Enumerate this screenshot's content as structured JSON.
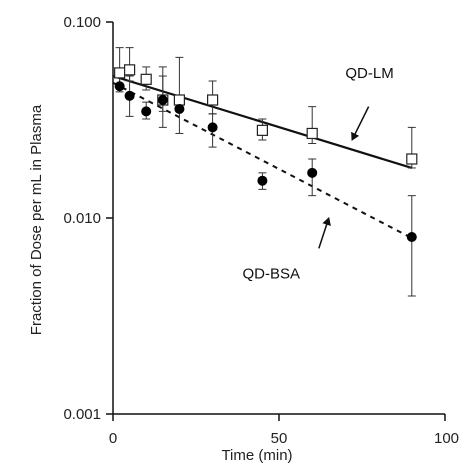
{
  "chart_data": {
    "type": "scatter",
    "xlabel": "Time (min)",
    "ylabel": "Fraction of Dose per mL in Plasma",
    "xlim": [
      0,
      100
    ],
    "ylim": [
      0.001,
      0.1
    ],
    "yscale": "log",
    "x_ticks": [
      "0",
      "50",
      "100"
    ],
    "y_ticks": [
      "0.001",
      "0.010",
      "0.100"
    ],
    "grid": false,
    "legend": "none",
    "series": [
      {
        "name": "QD-LM",
        "marker": "open-square",
        "x": [
          2,
          5,
          10,
          15,
          20,
          30,
          45,
          60,
          90
        ],
        "y": [
          0.055,
          0.057,
          0.051,
          0.04,
          0.04,
          0.04,
          0.028,
          0.027,
          0.02
        ],
        "error_upper": [
          0.074,
          0.074,
          0.059,
          0.059,
          0.066,
          0.05,
          0.032,
          0.037,
          0.029
        ],
        "error_lower": [
          0.048,
          0.05,
          0.045,
          0.035,
          0.035,
          0.034,
          0.025,
          0.024,
          0.018
        ],
        "fit": {
          "x": [
            0,
            90
          ],
          "y": [
            0.053,
            0.018
          ],
          "style": "solid"
        },
        "label_arrow": {
          "from": [
            77,
            0.037
          ],
          "to": [
            72,
            0.025
          ]
        }
      },
      {
        "name": "QD-BSA",
        "marker": "filled-circle",
        "x": [
          2,
          5,
          10,
          15,
          20,
          30,
          45,
          60,
          90
        ],
        "y": [
          0.047,
          0.042,
          0.035,
          0.04,
          0.036,
          0.029,
          0.0155,
          0.017,
          0.008
        ],
        "error_upper": [
          0.053,
          0.053,
          0.039,
          0.053,
          0.04,
          0.034,
          0.017,
          0.02,
          0.013
        ],
        "error_lower": [
          0.044,
          0.033,
          0.032,
          0.029,
          0.027,
          0.023,
          0.014,
          0.013,
          0.004
        ],
        "fit": {
          "x": [
            0,
            90
          ],
          "y": [
            0.049,
            0.0079
          ],
          "style": "dashed"
        },
        "label_arrow": {
          "from": [
            62,
            0.007
          ],
          "to": [
            65,
            0.01
          ]
        }
      }
    ],
    "annotations": [
      {
        "text": "QD-LM",
        "x": 70,
        "y": 0.055
      },
      {
        "text": "QD-BSA",
        "x": 39,
        "y": 0.0052
      }
    ]
  }
}
